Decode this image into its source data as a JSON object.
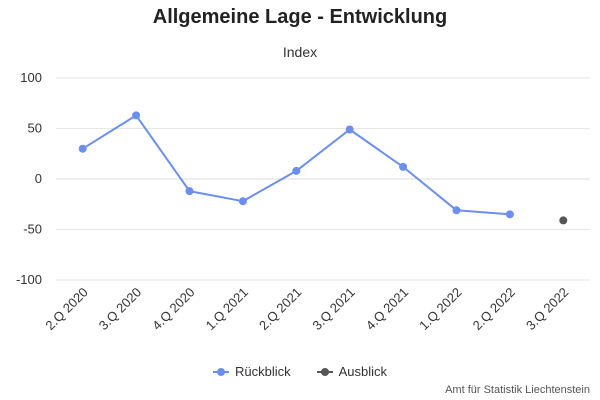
{
  "chart_data": {
    "type": "line",
    "title": "Allgemeine Lage - Entwicklung",
    "subtitle": "Index",
    "xlabel": "",
    "ylabel": "",
    "categories": [
      "2.Q 2020",
      "3.Q 2020",
      "4.Q 2020",
      "1.Q 2021",
      "2.Q 2021",
      "3.Q 2021",
      "4.Q 2021",
      "1.Q 2022",
      "2.Q 2022",
      "3.Q 2022"
    ],
    "ylim": [
      -100,
      100
    ],
    "yticks": [
      100,
      50,
      0,
      -50,
      -100
    ],
    "grid": true,
    "legend_position": "bottom",
    "series": [
      {
        "name": "Rückblick",
        "color": "#6b8ff0",
        "values": [
          30,
          63,
          -12,
          -22,
          8,
          49,
          12,
          -31,
          -35,
          null
        ]
      },
      {
        "name": "Ausblick",
        "color": "#555555",
        "values": [
          null,
          null,
          null,
          null,
          null,
          null,
          null,
          null,
          null,
          -41
        ]
      }
    ],
    "credits": "Amt für Statistik Liechtenstein"
  }
}
